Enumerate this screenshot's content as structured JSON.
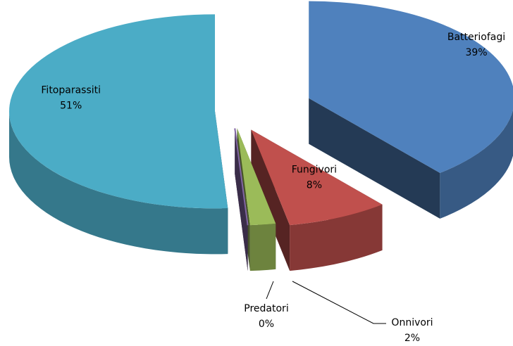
{
  "chart_data": {
    "type": "pie3d",
    "categories": [
      "Batteriofagi",
      "Fungivori",
      "Onnivori",
      "Predatori",
      "Fitoparassiti"
    ],
    "values": [
      39,
      8,
      2,
      0,
      51
    ],
    "value_labels": [
      "39%",
      "8%",
      "2%",
      "0%",
      "51%"
    ],
    "colors": [
      "#4f81bd",
      "#c0504d",
      "#9bbb59",
      "#8064a2",
      "#4bacc6"
    ]
  }
}
